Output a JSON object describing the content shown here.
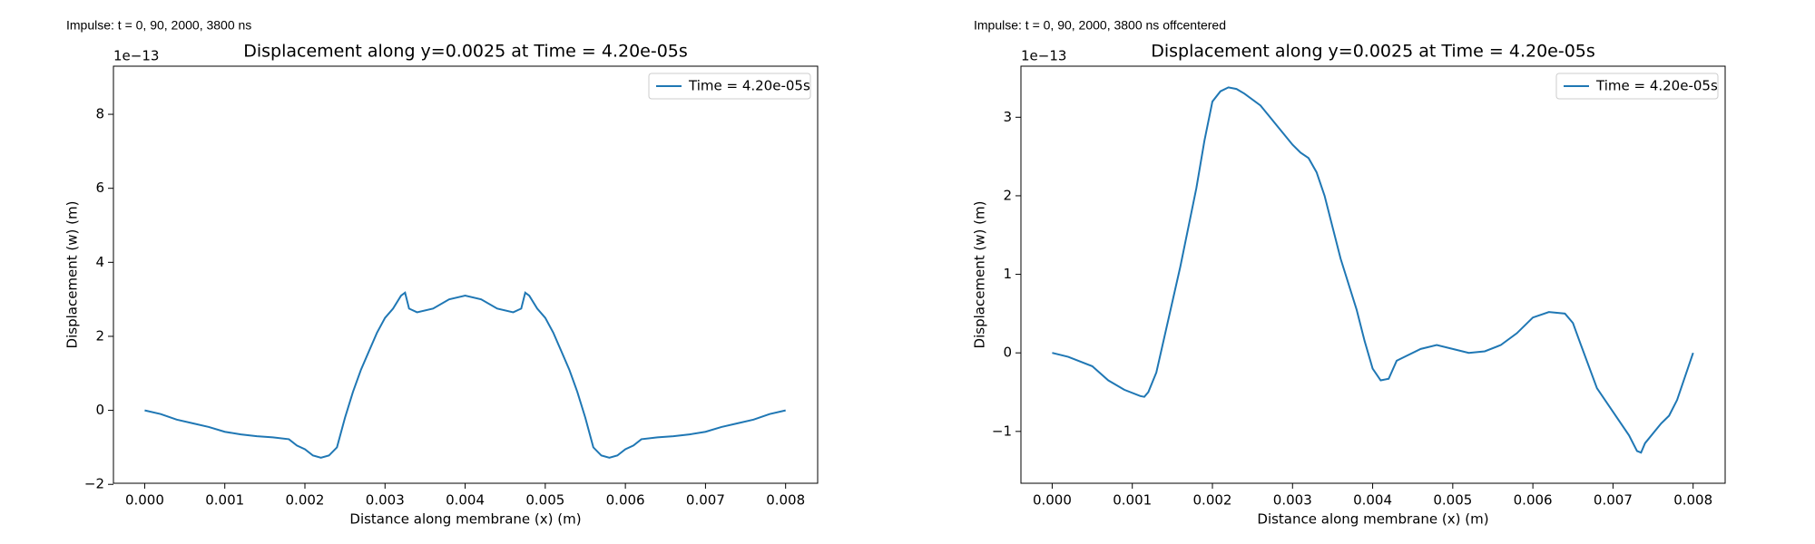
{
  "chart_data": [
    {
      "type": "line",
      "annotation": "Impulse: t = 0, 90, 2000, 3800 ns",
      "title": "Displacement along y=0.0025 at Time = 4.20e-05s",
      "xlabel": "Distance along membrane (x) (m)",
      "ylabel": "Displacement (w) (m)",
      "offset_text": "1e−13",
      "xlim": [
        -0.00039,
        0.0084
      ],
      "ylim": [
        -1.97,
        9.3
      ],
      "xticks": [
        {
          "value": 0,
          "label": "0.000"
        },
        {
          "value": 0.001,
          "label": "0.001"
        },
        {
          "value": 0.002,
          "label": "0.002"
        },
        {
          "value": 0.003,
          "label": "0.003"
        },
        {
          "value": 0.004,
          "label": "0.004"
        },
        {
          "value": 0.005,
          "label": "0.005"
        },
        {
          "value": 0.006,
          "label": "0.006"
        },
        {
          "value": 0.007,
          "label": "0.007"
        },
        {
          "value": 0.008,
          "label": "0.008"
        }
      ],
      "yticks": [
        {
          "value": -2,
          "label": "−2"
        },
        0,
        2,
        4,
        6,
        8
      ],
      "legend": "upper right",
      "x": [
        0,
        0.0002,
        0.0004,
        0.0006,
        0.0008,
        0.001,
        0.0012,
        0.0014,
        0.0016,
        0.0018,
        0.0019,
        0.002,
        0.0021,
        0.0022,
        0.0023,
        0.0024,
        0.0025,
        0.0026,
        0.0027,
        0.0028,
        0.0029,
        0.003,
        0.0031,
        0.0032,
        0.00325,
        0.0033,
        0.0034,
        0.0036,
        0.0038,
        0.004,
        0.0042,
        0.0044,
        0.0046,
        0.0047,
        0.00475,
        0.0048,
        0.0049,
        0.005,
        0.0051,
        0.0052,
        0.0053,
        0.0054,
        0.0055,
        0.0056,
        0.0057,
        0.0058,
        0.0059,
        0.006,
        0.0061,
        0.0062,
        0.0064,
        0.0066,
        0.0068,
        0.007,
        0.0072,
        0.0074,
        0.0076,
        0.0078,
        0.008
      ],
      "series": [
        {
          "name": "Time = 4.20e-05s",
          "color": "#1f77b4",
          "values": [
            0,
            -0.1,
            -0.25,
            -0.35,
            -0.45,
            -0.58,
            -0.65,
            -0.7,
            -0.73,
            -0.78,
            -0.95,
            -1.05,
            -1.22,
            -1.28,
            -1.22,
            -1.0,
            -0.2,
            0.5,
            1.1,
            1.6,
            2.1,
            2.5,
            2.75,
            3.1,
            3.18,
            2.75,
            2.65,
            2.75,
            3.0,
            3.1,
            3.0,
            2.75,
            2.65,
            2.75,
            3.18,
            3.1,
            2.75,
            2.5,
            2.1,
            1.6,
            1.1,
            0.5,
            -0.2,
            -1.0,
            -1.22,
            -1.28,
            -1.22,
            -1.05,
            -0.95,
            -0.78,
            -0.73,
            -0.7,
            -0.65,
            -0.58,
            -0.45,
            -0.35,
            -0.25,
            -0.1,
            0
          ]
        }
      ]
    },
    {
      "type": "line",
      "annotation": "Impulse: t = 0, 90, 2000, 3800 ns offcentered",
      "title": "Displacement along y=0.0025 at Time = 4.20e-05s",
      "xlabel": "Distance along membrane (x) (m)",
      "ylabel": "Displacement (w) (m)",
      "offset_text": "1e−13",
      "xlim": [
        -0.00039,
        0.0084
      ],
      "ylim": [
        -1.66,
        3.65
      ],
      "xticks": [
        {
          "value": 0,
          "label": "0.000"
        },
        {
          "value": 0.001,
          "label": "0.001"
        },
        {
          "value": 0.002,
          "label": "0.002"
        },
        {
          "value": 0.003,
          "label": "0.003"
        },
        {
          "value": 0.004,
          "label": "0.004"
        },
        {
          "value": 0.005,
          "label": "0.005"
        },
        {
          "value": 0.006,
          "label": "0.006"
        },
        {
          "value": 0.007,
          "label": "0.007"
        },
        {
          "value": 0.008,
          "label": "0.008"
        }
      ],
      "yticks": [
        {
          "value": -1,
          "label": "−1"
        },
        0,
        1,
        2,
        3
      ],
      "legend": "upper right",
      "x": [
        0,
        0.0002,
        0.0005,
        0.0007,
        0.0009,
        0.0011,
        0.00115,
        0.0012,
        0.0013,
        0.0014,
        0.0016,
        0.0018,
        0.0019,
        0.002,
        0.0021,
        0.0022,
        0.0023,
        0.0024,
        0.0026,
        0.0028,
        0.003,
        0.0031,
        0.0032,
        0.0033,
        0.0034,
        0.0035,
        0.0036,
        0.0038,
        0.0039,
        0.004,
        0.0041,
        0.0042,
        0.0043,
        0.0044,
        0.0046,
        0.0048,
        0.005,
        0.0052,
        0.0054,
        0.0056,
        0.0058,
        0.006,
        0.0062,
        0.0064,
        0.0065,
        0.0066,
        0.0068,
        0.007,
        0.0072,
        0.0073,
        0.00735,
        0.0074,
        0.0076,
        0.0077,
        0.0078,
        0.008
      ],
      "series": [
        {
          "name": "Time = 4.20e-05s",
          "color": "#1f77b4",
          "values": [
            0,
            -0.05,
            -0.17,
            -0.35,
            -0.47,
            -0.55,
            -0.56,
            -0.5,
            -0.25,
            0.2,
            1.1,
            2.1,
            2.7,
            3.2,
            3.33,
            3.38,
            3.36,
            3.3,
            3.15,
            2.9,
            2.65,
            2.55,
            2.48,
            2.3,
            2.0,
            1.6,
            1.2,
            0.55,
            0.15,
            -0.2,
            -0.35,
            -0.33,
            -0.1,
            -0.05,
            0.05,
            0.1,
            0.05,
            0.0,
            0.02,
            0.1,
            0.25,
            0.45,
            0.52,
            0.5,
            0.38,
            0.1,
            -0.45,
            -0.75,
            -1.05,
            -1.25,
            -1.27,
            -1.15,
            -0.9,
            -0.8,
            -0.6,
            0
          ]
        }
      ]
    }
  ]
}
